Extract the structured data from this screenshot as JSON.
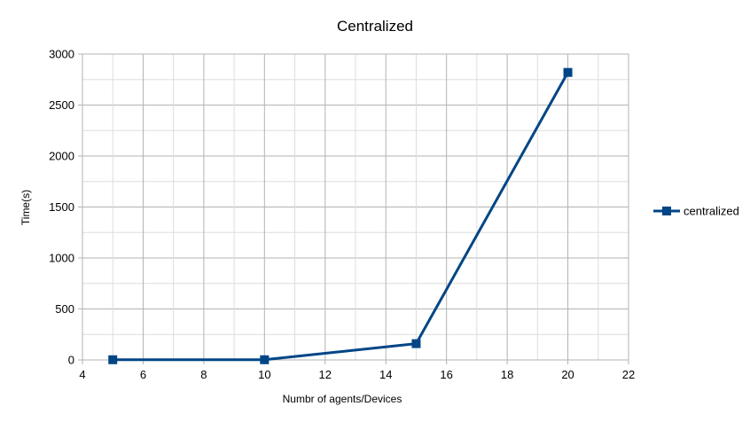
{
  "chart_data": {
    "type": "line",
    "title": "Centralized",
    "xlabel": "Numbr of agents/Devices",
    "ylabel": "Time(s)",
    "xlim": [
      4,
      22
    ],
    "ylim": [
      0,
      3000
    ],
    "xticks": [
      4,
      6,
      8,
      10,
      12,
      14,
      16,
      18,
      20,
      22
    ],
    "yticks": [
      0,
      500,
      1000,
      1500,
      2000,
      2500,
      3000
    ],
    "grid": true,
    "legend_position": "right",
    "series": [
      {
        "name": "centralized",
        "color": "#004586",
        "marker": "square",
        "x": [
          5,
          10,
          15,
          20
        ],
        "y": [
          2,
          2,
          160,
          2820
        ]
      }
    ]
  }
}
